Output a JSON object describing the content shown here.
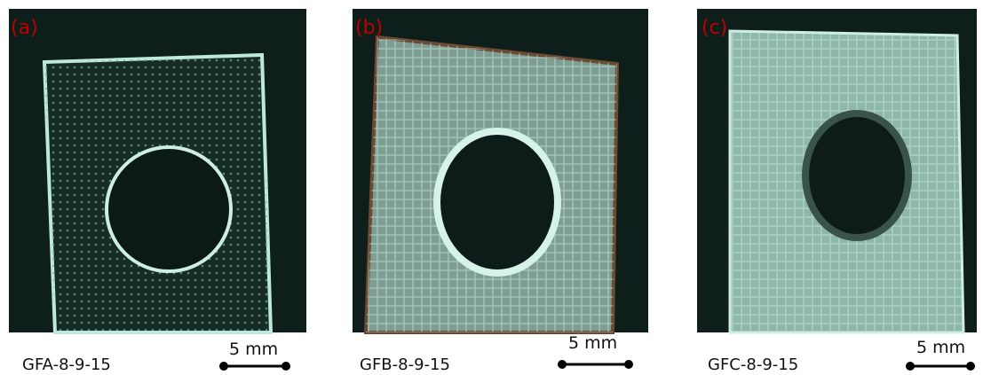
{
  "panels": [
    {
      "label": "(a)",
      "caption": "GFA-8-9-15",
      "scale": "5 mm"
    },
    {
      "label": "(b)",
      "caption": "GFB-8-9-15",
      "scale": "5 mm"
    },
    {
      "label": "(c)",
      "caption": "GFC-8-9-15",
      "scale": "5 mm"
    }
  ]
}
